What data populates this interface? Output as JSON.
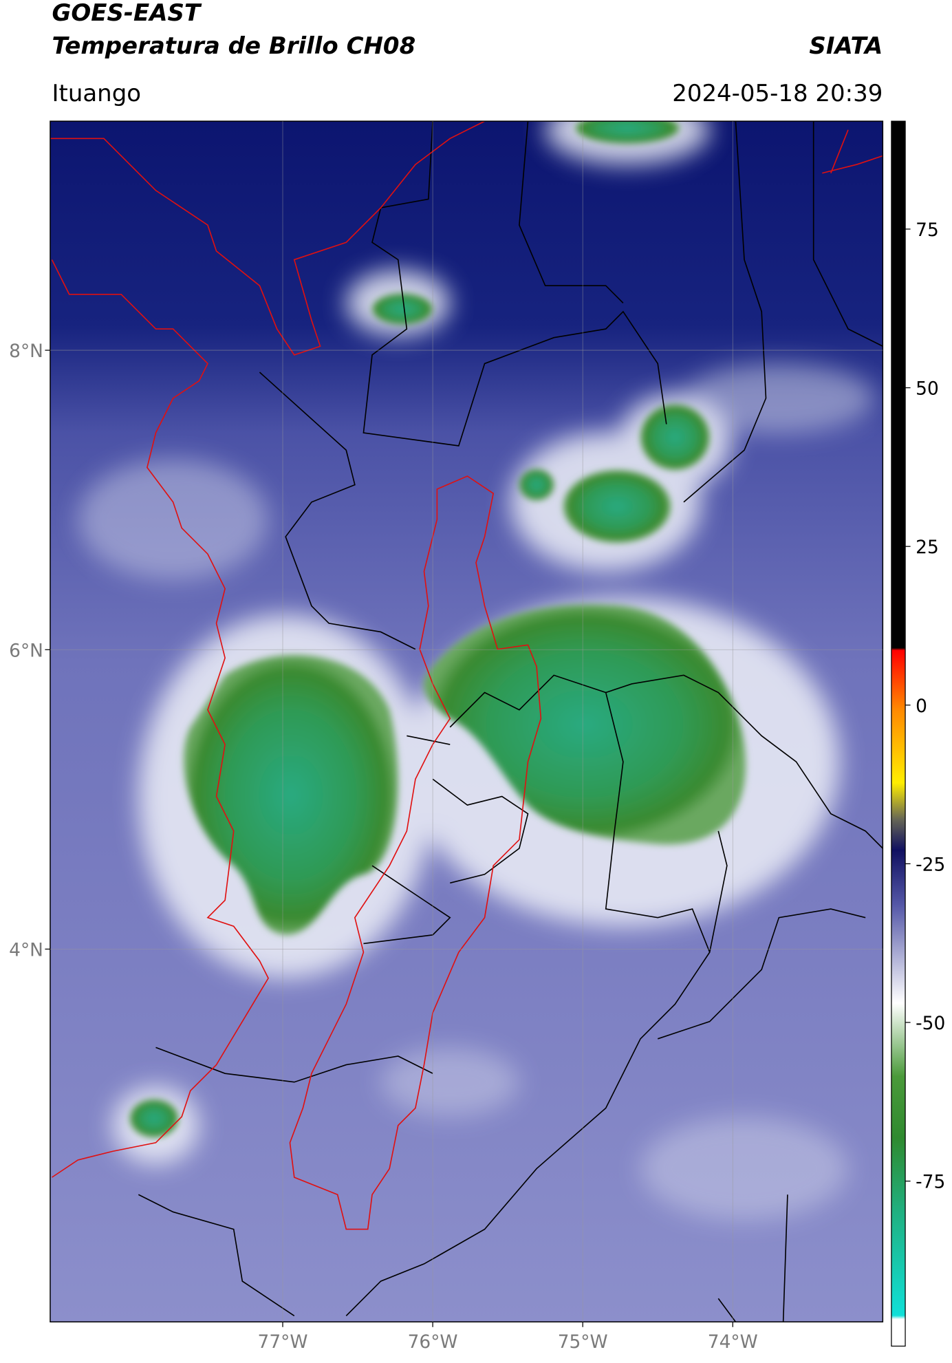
{
  "header": {
    "title": "GOES-EAST",
    "subtitle": "Temperatura de Brillo CH08",
    "brand": "SIATA",
    "location": "Ituango",
    "datetime": "2024-05-18 20:39"
  },
  "map": {
    "xlim": [
      -78.55,
      -73.0
    ],
    "ylim": [
      1.51,
      9.53
    ],
    "grid": true,
    "xticks": [
      {
        "value": -77,
        "label": "77°W"
      },
      {
        "value": -76,
        "label": "76°W"
      },
      {
        "value": -75,
        "label": "75°W"
      },
      {
        "value": -74,
        "label": "74°W"
      }
    ],
    "yticks": [
      {
        "value": 8,
        "label": "8°N"
      },
      {
        "value": 6,
        "label": "6°N"
      },
      {
        "value": 4,
        "label": "4°N"
      }
    ]
  },
  "colorbar": {
    "clim": [
      -101,
      92
    ],
    "ticks": [
      75,
      50,
      25,
      0,
      -25,
      -50,
      -75
    ]
  }
}
